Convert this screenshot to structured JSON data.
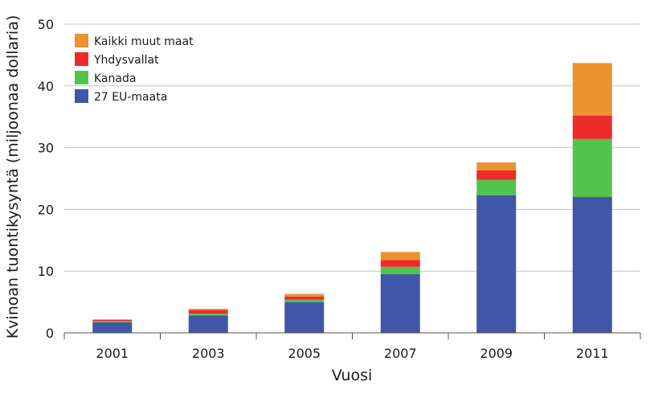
{
  "chart_data": {
    "type": "bar",
    "stacked": true,
    "title": "",
    "xlabel": "Vuosi",
    "ylabel": "Kvinoan tuontikysyntä (miljoonaa dollaria)",
    "categories": [
      "2001",
      "2003",
      "2005",
      "2007",
      "2009",
      "2011"
    ],
    "ylim": [
      0,
      50
    ],
    "yticks": [
      0,
      10,
      20,
      30,
      40,
      50
    ],
    "grid": true,
    "legend_position": "top-left",
    "series": [
      {
        "name": "27 EU-maata",
        "color": "#3f57a6",
        "values": [
          1.7,
          2.8,
          5.0,
          9.5,
          22.3,
          22.0
        ]
      },
      {
        "name": "Kanada",
        "color": "#52c44e",
        "values": [
          0.2,
          0.3,
          0.4,
          1.2,
          2.5,
          9.4
        ]
      },
      {
        "name": "Yhdysvallat",
        "color": "#ed2b2b",
        "values": [
          0.2,
          0.6,
          0.5,
          1.1,
          1.5,
          3.8
        ]
      },
      {
        "name": "Kaikki muut maat",
        "color": "#eb9231",
        "values": [
          0.1,
          0.2,
          0.4,
          1.3,
          1.3,
          8.5
        ]
      }
    ]
  }
}
